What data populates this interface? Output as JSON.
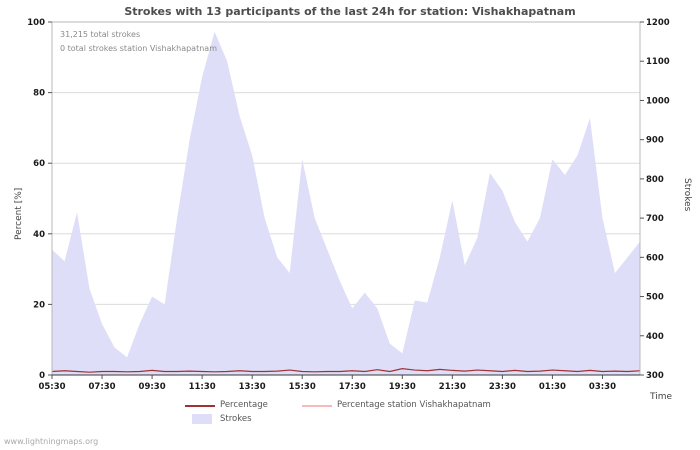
{
  "title": "Strokes with 13 participants of the last 24h for station: Vishakhapatnam",
  "annotations": {
    "total": "31,215 total strokes",
    "station": "0 total strokes station Vishakhapatnam"
  },
  "watermark": "www.lightningmaps.org",
  "chart_data": {
    "type": "area",
    "title": "Strokes with 13 participants of the last 24h for station: Vishakhapatnam",
    "x_start": "05:30",
    "x_interval_minutes": 30,
    "grid": "horizontal",
    "legend_position": "bottom",
    "x_axis": {
      "label": "Time",
      "tick_labels": [
        "05:30",
        "07:30",
        "09:30",
        "11:30",
        "13:30",
        "15:30",
        "17:30",
        "19:30",
        "21:30",
        "23:30",
        "01:30",
        "03:30"
      ],
      "tick_indices": [
        0,
        4,
        8,
        12,
        16,
        20,
        24,
        28,
        32,
        36,
        40,
        44
      ]
    },
    "left_axis": {
      "label": "Percent  [%]",
      "min": 0,
      "max": 100,
      "ticks": [
        0,
        20,
        40,
        60,
        80,
        100
      ]
    },
    "right_axis": {
      "label": "Strokes",
      "min": 300,
      "max": 1200,
      "ticks": [
        300,
        400,
        500,
        600,
        700,
        800,
        900,
        1000,
        1100,
        1200
      ]
    },
    "series": [
      {
        "name": "Strokes",
        "type": "area",
        "axis": "right",
        "color": "#dedef8",
        "values": [
          620,
          590,
          715,
          520,
          430,
          370,
          345,
          430,
          500,
          480,
          700,
          900,
          1060,
          1175,
          1100,
          960,
          860,
          700,
          600,
          560,
          850,
          700,
          620,
          540,
          470,
          510,
          470,
          380,
          355,
          490,
          485,
          600,
          745,
          580,
          650,
          815,
          770,
          690,
          640,
          700,
          850,
          810,
          860,
          955,
          700,
          560,
          600,
          640
        ]
      },
      {
        "name": "Percentage",
        "type": "line",
        "axis": "left",
        "color": "#a03232",
        "values": [
          1,
          1.2,
          1,
          0.8,
          1,
          1,
          0.9,
          1,
          1.3,
          1,
          1,
          1.1,
          1,
          0.9,
          1,
          1.2,
          1,
          1,
          1.1,
          1.4,
          1,
          0.9,
          1,
          1,
          1.2,
          1,
          1.5,
          1,
          1.8,
          1.4,
          1.2,
          1.6,
          1.3,
          1.1,
          1.4,
          1.2,
          1,
          1.3,
          1,
          1.1,
          1.4,
          1.2,
          1,
          1.3,
          1,
          1.1,
          1,
          1.2
        ]
      },
      {
        "name": "Percentage station Vishakhapatnam",
        "type": "line",
        "axis": "left",
        "color": "#f6baba",
        "values": [
          0,
          0,
          0,
          0,
          0,
          0,
          0,
          0,
          0,
          0,
          0,
          0,
          0,
          0,
          0,
          0,
          0,
          0,
          0,
          0,
          0,
          0,
          0,
          0,
          0,
          0,
          0,
          0,
          0,
          0,
          0,
          0,
          0,
          0,
          0,
          0,
          0,
          0,
          0,
          0,
          0,
          0,
          0,
          0,
          0,
          0,
          0,
          0
        ]
      }
    ]
  }
}
